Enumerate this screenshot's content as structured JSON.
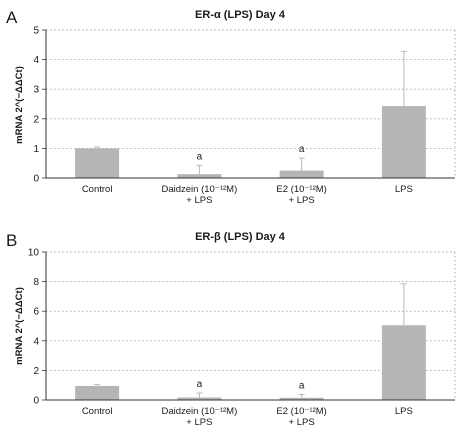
{
  "chart_data": [
    {
      "type": "bar",
      "panel_label": "A",
      "title": "ER-α (LPS) Day 4",
      "ylabel": "mRNA 2^(−ΔΔCt)",
      "xlabel": "",
      "ylim": [
        0,
        5
      ],
      "yticks": [
        "0",
        "1",
        "2",
        "3",
        "4",
        "5"
      ],
      "grid": true,
      "categories": [
        {
          "line1": "Control",
          "line2": ""
        },
        {
          "line1": "Daidzein (10⁻¹²M)",
          "line2": "+ LPS"
        },
        {
          "line1": "E2 (10⁻¹²M)",
          "line2": "+ LPS"
        },
        {
          "line1": "LPS",
          "line2": ""
        }
      ],
      "values": [
        1.0,
        0.13,
        0.25,
        2.43
      ],
      "errors": [
        0.05,
        0.3,
        0.42,
        1.85
      ],
      "annotations": [
        "",
        "a",
        "a",
        ""
      ],
      "bar_color": "#b5b5b5"
    },
    {
      "type": "bar",
      "panel_label": "B",
      "title": "ER-β (LPS) Day 4",
      "ylabel": "mRNA 2^(−ΔΔCt)",
      "xlabel": "",
      "ylim": [
        0,
        10
      ],
      "yticks": [
        "0",
        "2",
        "4",
        "6",
        "8",
        "10"
      ],
      "grid": true,
      "categories": [
        {
          "line1": "Control",
          "line2": ""
        },
        {
          "line1": "Daidzein (10⁻¹²M)",
          "line2": "+ LPS"
        },
        {
          "line1": "E2 (10⁻¹²M)",
          "line2": "+ LPS"
        },
        {
          "line1": "LPS",
          "line2": ""
        }
      ],
      "values": [
        0.95,
        0.17,
        0.15,
        5.05
      ],
      "errors": [
        0.1,
        0.3,
        0.22,
        2.8
      ],
      "annotations": [
        "",
        "a",
        "a",
        ""
      ],
      "bar_color": "#b5b5b5"
    }
  ]
}
